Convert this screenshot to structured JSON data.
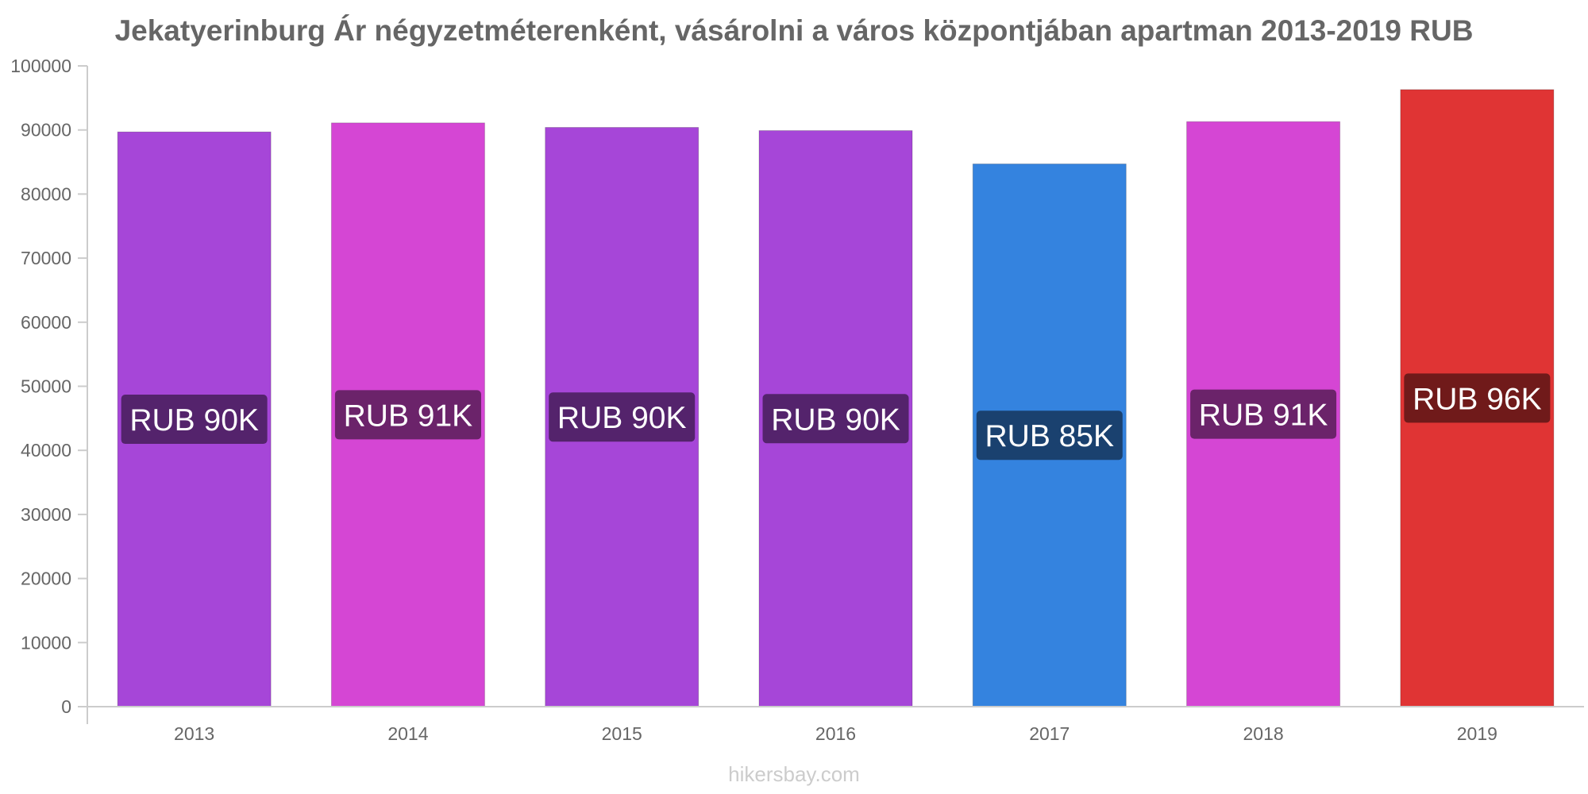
{
  "chart_data": {
    "type": "bar",
    "title": "Jekatyerinburg Ár négyzetméterenként, vásárolni a város központjában apartman 2013-2019 RUB",
    "categories": [
      "2013",
      "2014",
      "2015",
      "2016",
      "2017",
      "2018",
      "2019"
    ],
    "values": [
      89700,
      91100,
      90400,
      89900,
      84700,
      91300,
      96300
    ],
    "data_labels": [
      "RUB 90K",
      "RUB 91K",
      "RUB 90K",
      "RUB 90K",
      "RUB 85K",
      "RUB 91K",
      "RUB 96K"
    ],
    "bar_colors": [
      "#a646d8",
      "#d546d4",
      "#a646d8",
      "#a646d8",
      "#3483df",
      "#d546d4",
      "#e03434"
    ],
    "label_bg_colors": [
      "#54236c",
      "#6b236a",
      "#54236c",
      "#54236c",
      "#1a416f",
      "#6b236a",
      "#701a1a"
    ],
    "ylim": [
      0,
      100000
    ],
    "yticks": [
      "0",
      "10000",
      "20000",
      "30000",
      "40000",
      "50000",
      "60000",
      "70000",
      "80000",
      "90000",
      "100000"
    ],
    "xlabel": "",
    "ylabel": "",
    "grid": false,
    "legend": "none"
  },
  "watermark": "hikersbay.com"
}
